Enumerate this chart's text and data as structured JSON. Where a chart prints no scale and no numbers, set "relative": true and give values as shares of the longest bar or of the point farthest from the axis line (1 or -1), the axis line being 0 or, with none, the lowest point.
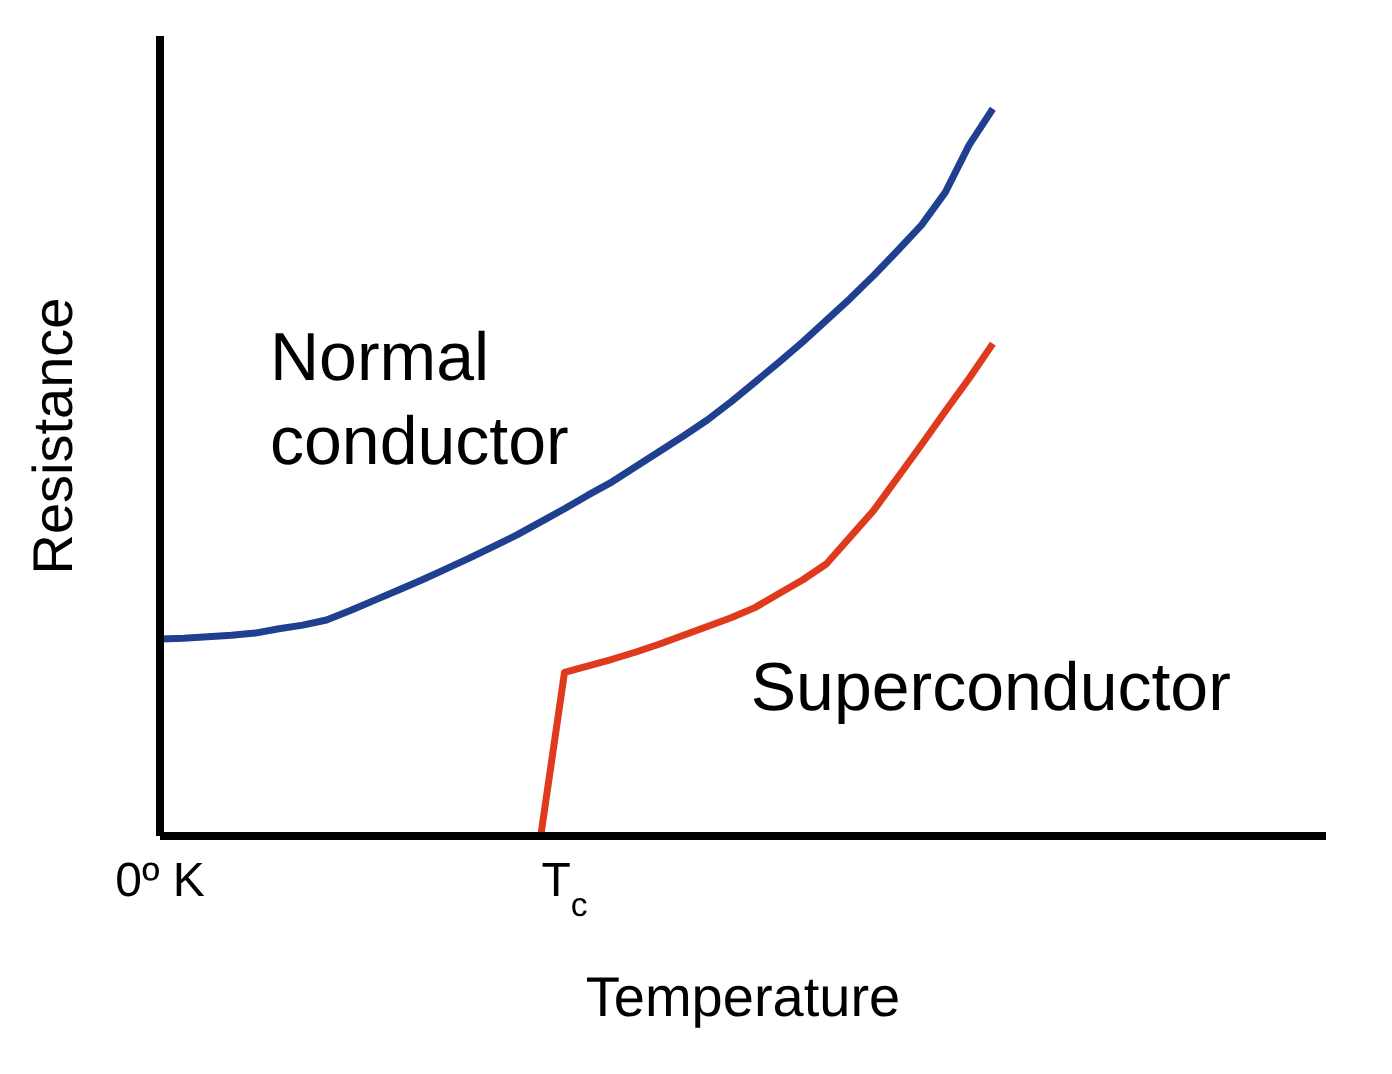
{
  "chart_data": {
    "type": "line",
    "relative": true,
    "xlabel": "Temperature",
    "ylabel": "Resistance",
    "marker": "none",
    "tick_labels": "x",
    "categories": [
      "0º K",
      null,
      null,
      null,
      null,
      null,
      null,
      null,
      null,
      null,
      null,
      null,
      null,
      null,
      null,
      null,
      null,
      "T$_{c}$",
      null,
      null,
      null,
      null,
      null,
      null,
      null,
      null,
      null,
      null,
      null,
      null,
      null,
      null,
      null,
      null,
      null,
      null,
      null,
      null,
      null,
      null,
      null,
      null,
      null,
      null,
      null,
      null,
      null,
      null,
      null,
      null
    ],
    "series": [
      {
        "name": "Normal conductor",
        "color": "#1f3f8f",
        "values": [
          0.271,
          0.272,
          0.274,
          0.276,
          0.279,
          0.285,
          0.29,
          0.297,
          0.31,
          0.324,
          0.338,
          0.352,
          0.367,
          0.382,
          0.398,
          0.414,
          0.432,
          0.45,
          0.469,
          0.487,
          0.508,
          0.529,
          0.55,
          0.572,
          0.597,
          0.624,
          0.651,
          0.679,
          0.709,
          0.739,
          0.771,
          0.805,
          0.84,
          0.885,
          0.95,
          1.0,
          null,
          null,
          null,
          null,
          null,
          null,
          null,
          null,
          null,
          null,
          null,
          null,
          null,
          null
        ]
      },
      {
        "name": "Superconductor",
        "color": "#e03a1e",
        "values": [
          null,
          null,
          null,
          null,
          null,
          null,
          null,
          null,
          null,
          null,
          null,
          null,
          null,
          null,
          null,
          null,
          0,
          0.225,
          0.234,
          0.243,
          0.253,
          0.264,
          0.276,
          0.288,
          0.3,
          0.314,
          0.333,
          0.352,
          0.374,
          0.411,
          0.448,
          0.493,
          0.538,
          0.584,
          0.629,
          0.677,
          null,
          null,
          null,
          null,
          null,
          null,
          null,
          null,
          null,
          null,
          null,
          null,
          null,
          null
        ]
      }
    ]
  }
}
